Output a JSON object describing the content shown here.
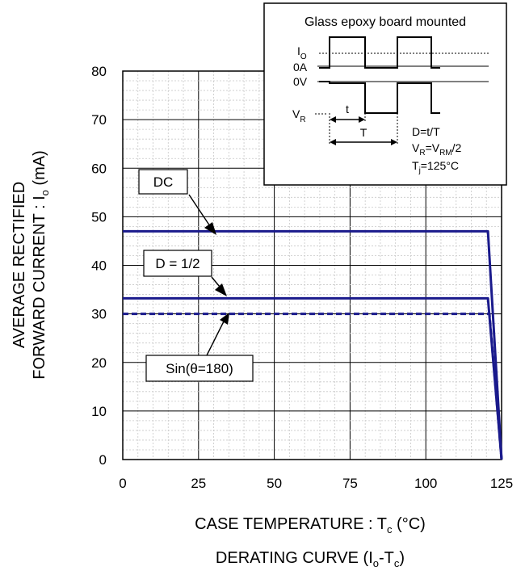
{
  "chart_data": {
    "type": "line",
    "title": "",
    "xlabel": "CASE TEMPERATURE : T",
    "xlabel_sub": "c",
    "xlabel_unit": " (°C)",
    "caption": "DERATING CURVE (I",
    "caption_sub1": "o",
    "caption_mid": "-T",
    "caption_sub2": "c",
    "caption_end": ")",
    "ylabel_line1": "AVERAGE RECTIFIED",
    "ylabel_line2": "FORWARD CURRENT : I",
    "ylabel_sub": "o",
    "ylabel_unit": " (mA)",
    "xlim": [
      0,
      125
    ],
    "ylim": [
      0,
      80
    ],
    "x_ticks": [
      "0",
      "25",
      "50",
      "75",
      "100",
      "125"
    ],
    "y_ticks": [
      "0",
      "10",
      "20",
      "30",
      "40",
      "50",
      "60",
      "70",
      "80"
    ],
    "grid": true,
    "minor_grid": true,
    "series": [
      {
        "name": "DC",
        "color": "#1a1a8c",
        "style": "solid",
        "x": [
          0,
          120.5,
          125
        ],
        "y": [
          47,
          47,
          0
        ]
      },
      {
        "name": "D = 1/2",
        "color": "#1a1a8c",
        "style": "solid",
        "x": [
          0,
          120.5,
          125
        ],
        "y": [
          33.2,
          33.2,
          0
        ]
      },
      {
        "name": "Sin(θ=180)",
        "color": "#1a1a8c",
        "style": "dashed",
        "x": [
          0,
          121,
          125
        ],
        "y": [
          30,
          30,
          0
        ]
      }
    ],
    "inset": {
      "title": "Glass epoxy board mounted",
      "io_label": "I",
      "io_sub": "O",
      "zero_a": "0A",
      "zero_v": "0V",
      "vr_label": "V",
      "vr_sub": "R",
      "t_label": "t",
      "period_label": "T",
      "duty_eq": "D=t/T",
      "vr_eq_a": "V",
      "vr_eq_sub1": "R",
      "vr_eq_b": "=V",
      "vr_eq_sub2": "RM",
      "vr_eq_c": "/2",
      "tj_a": "T",
      "tj_sub": "j",
      "tj_b": "=125°C"
    }
  }
}
